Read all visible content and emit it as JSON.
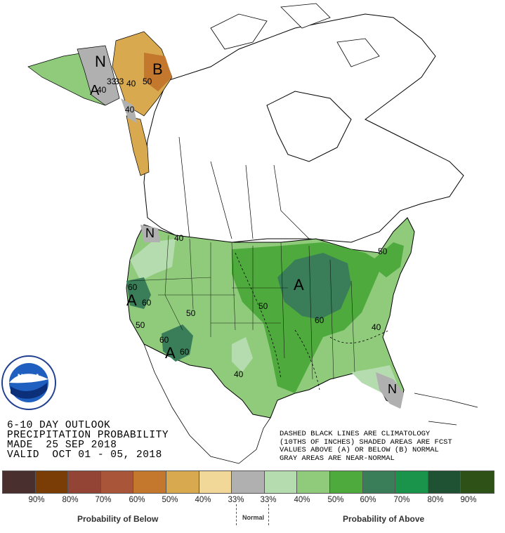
{
  "outlook_text": {
    "line1": "6-10 DAY OUTLOOK",
    "line2": "PRECIPITATION PROBABILITY",
    "line3": "MADE  25 SEP 2018",
    "line4": "VALID  OCT 01 - 05, 2018"
  },
  "note_text": {
    "line1": "DASHED BLACK LINES ARE CLIMATOLOGY",
    "line2": "(10THS OF INCHES) SHADED AREAS ARE FCST",
    "line3": "VALUES ABOVE (A) OR BELOW (B) NORMAL",
    "line4": "GRAY AREAS ARE NEAR-NORMAL"
  },
  "logo_text": "NOAA",
  "map_labels": {
    "A": "A",
    "B": "B",
    "N": "N",
    "p33": "33",
    "p40": "40",
    "p50": "50",
    "p60": "60"
  },
  "legend": {
    "below_colors": [
      "#4a2f2f",
      "#7a3d06",
      "#944435",
      "#a8553a",
      "#c4782d",
      "#d8a94f",
      "#f1d898"
    ],
    "normal_color": "#b0b0b0",
    "above_colors": [
      "#b5dcae",
      "#8fcb7b",
      "#4faa3d",
      "#3a7d59",
      "#19944a",
      "#1e5233",
      "#2d5117"
    ],
    "labels": [
      "90%",
      "80%",
      "70%",
      "60%",
      "50%",
      "40%",
      "33%",
      "33%",
      "40%",
      "50%",
      "60%",
      "70%",
      "80%",
      "90%"
    ],
    "below_title": "Probability of Below",
    "normal_title": "Normal",
    "above_title": "Probability of Above"
  }
}
